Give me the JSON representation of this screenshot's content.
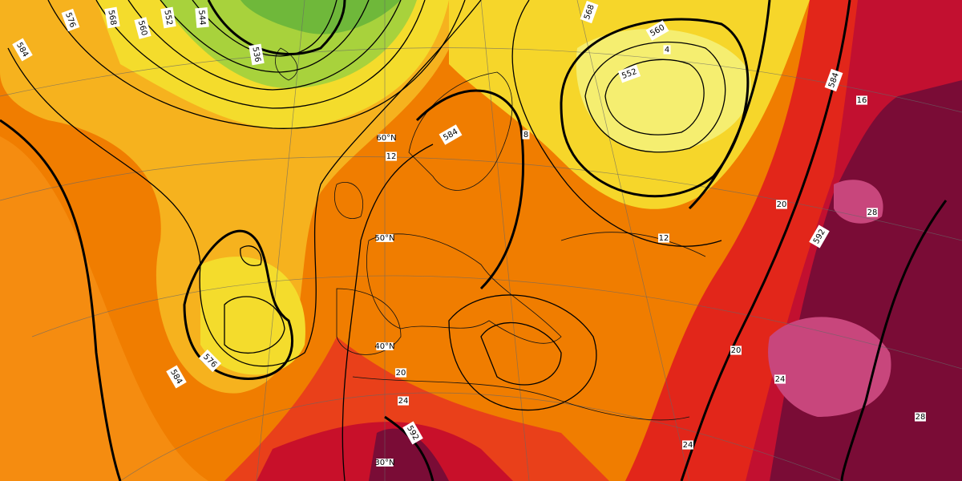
{
  "map": {
    "contour_labels": [
      "576",
      "568",
      "560",
      "552",
      "544",
      "536",
      "584",
      "568",
      "560",
      "552",
      "584",
      "584",
      "592",
      "576",
      "584",
      "592"
    ],
    "latitude_labels": [
      "60°N",
      "50°N",
      "40°N",
      "30°N"
    ],
    "temperature_labels": [
      "4",
      "8",
      "12",
      "12",
      "16",
      "20",
      "28",
      "20",
      "24",
      "28",
      "24",
      "20",
      "24"
    ]
  }
}
